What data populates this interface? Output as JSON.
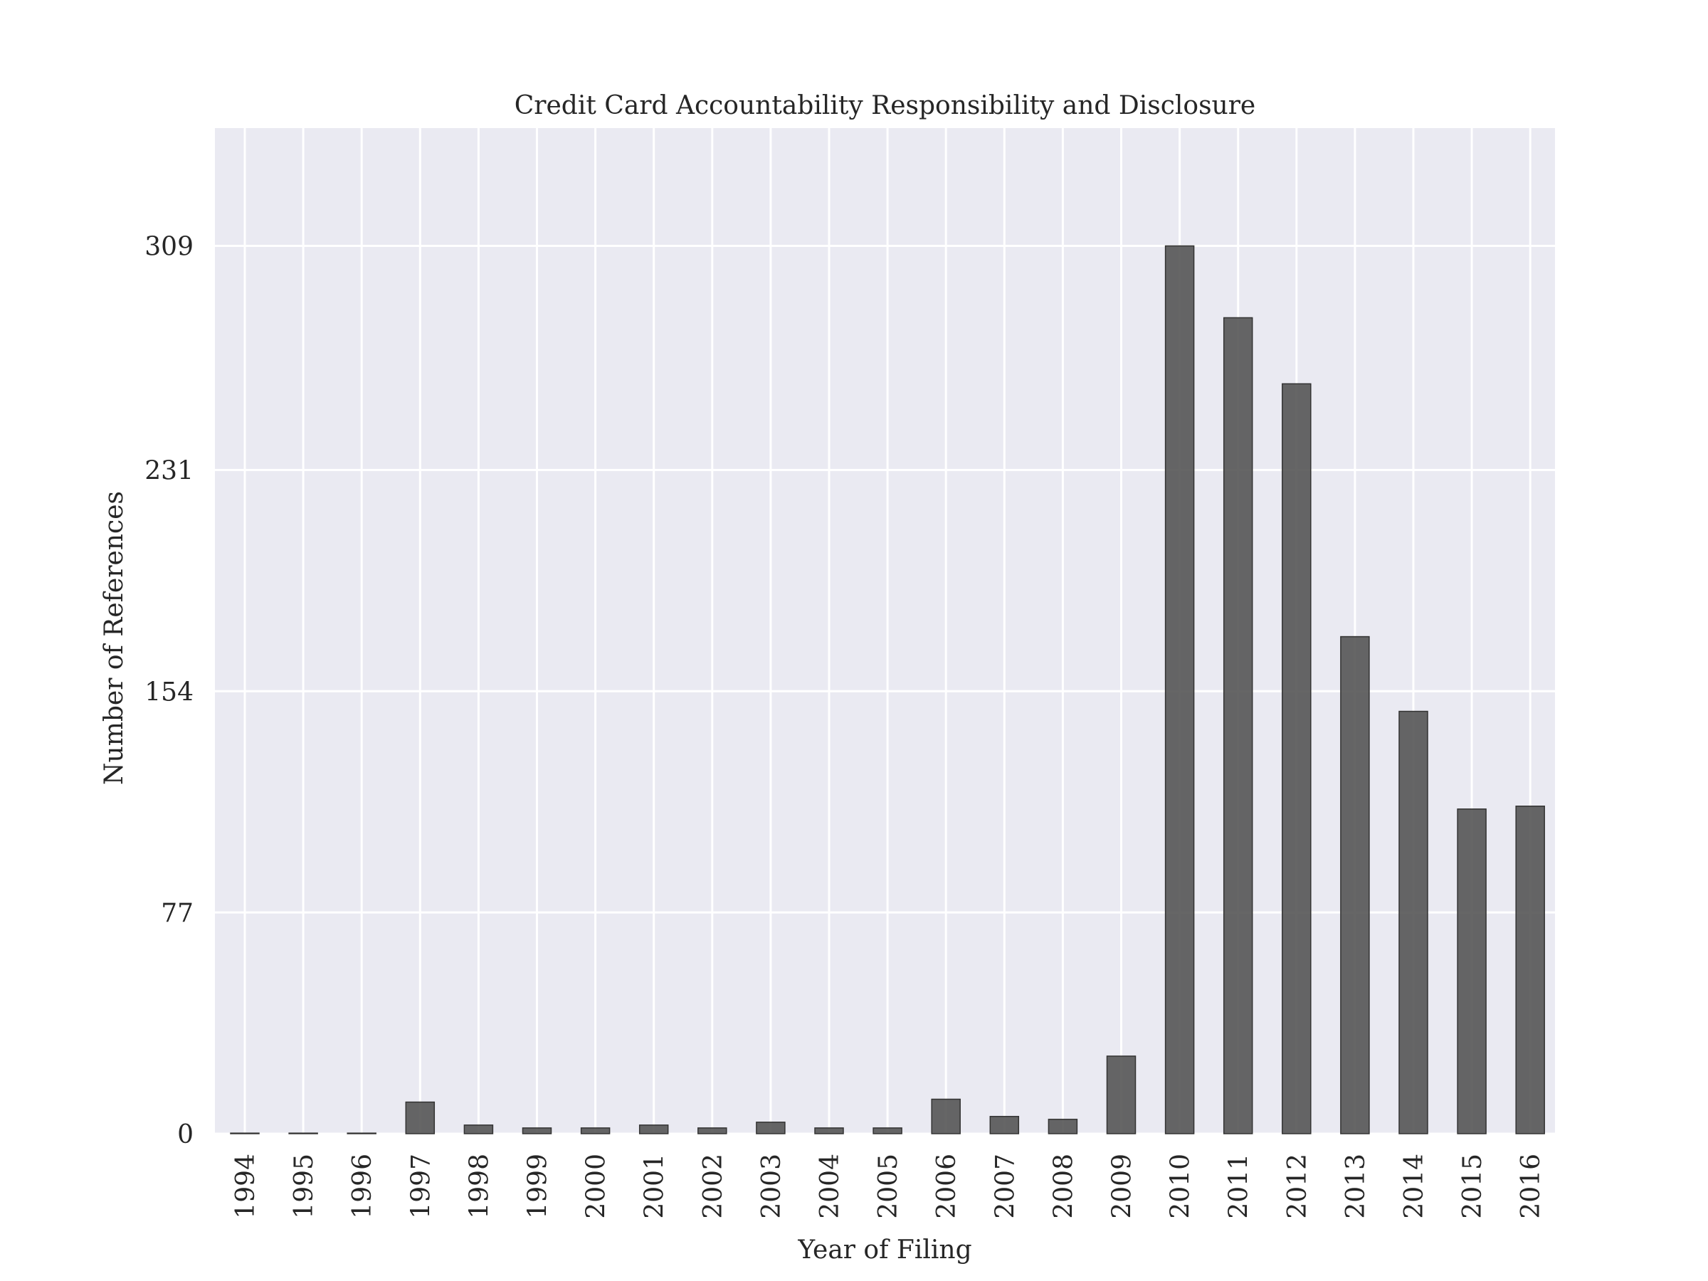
{
  "chart_data": {
    "type": "bar",
    "title": "Credit Card Accountability Responsibility and Disclosure",
    "xlabel": "Year of Filing",
    "ylabel": "Number of References",
    "categories": [
      "1994",
      "1995",
      "1996",
      "1997",
      "1998",
      "1999",
      "2000",
      "2001",
      "2002",
      "2003",
      "2004",
      "2005",
      "2006",
      "2007",
      "2008",
      "2009",
      "2010",
      "2011",
      "2012",
      "2013",
      "2014",
      "2015",
      "2016"
    ],
    "values": [
      0,
      0,
      0,
      11,
      3,
      2,
      2,
      3,
      2,
      4,
      2,
      2,
      12,
      6,
      5,
      27,
      309,
      284,
      261,
      173,
      147,
      113,
      114
    ],
    "yticks": [
      0,
      77,
      154,
      231,
      309
    ],
    "ylim": [
      0,
      350
    ],
    "grid": true,
    "colors": {
      "plot_background": "#eaeaf2",
      "grid": "#ffffff",
      "bar_fill": "#555555",
      "bar_stroke": "#333333",
      "text": "#262626"
    }
  }
}
